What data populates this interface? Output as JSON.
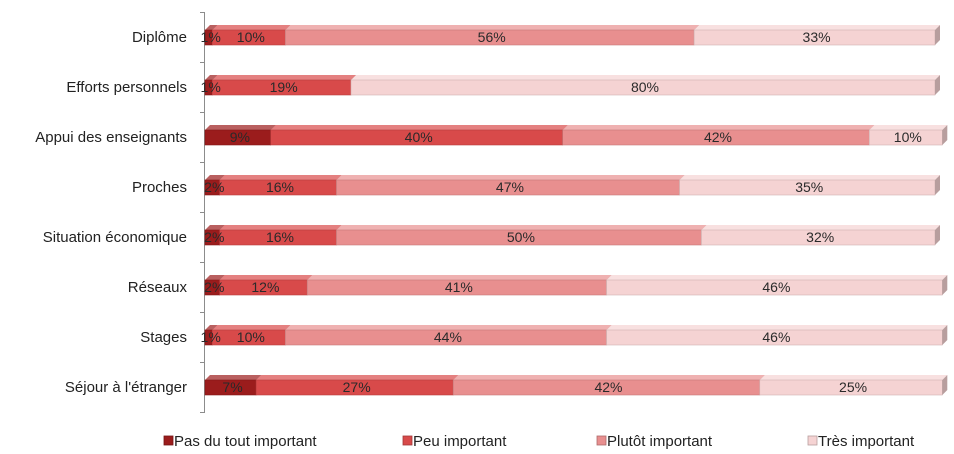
{
  "chart_data": {
    "type": "bar",
    "orientation": "horizontal",
    "stacked": true,
    "percent_stacked": true,
    "categories": [
      "Diplôme",
      "Efforts personnels",
      "Appui des enseignants",
      "Proches",
      "Situation économique",
      "Réseaux",
      "Stages",
      "Séjour à l'étranger"
    ],
    "series": [
      {
        "name": "Pas du tout important",
        "values": [
          1,
          1,
          9,
          2,
          2,
          2,
          1,
          7
        ],
        "labels": [
          "1%",
          "1%",
          "9%",
          "2%",
          "2%",
          "2%",
          "1%",
          "7%"
        ],
        "color": "#9b1c1c"
      },
      {
        "name": "Peu important",
        "values": [
          10,
          19,
          40,
          16,
          16,
          12,
          10,
          27
        ],
        "labels": [
          "10%",
          "19%",
          "40%",
          "16%",
          "16%",
          "12%",
          "10%",
          "27%"
        ],
        "color": "#d84a4a"
      },
      {
        "name": "Plutôt important",
        "values": [
          56,
          0,
          42,
          47,
          50,
          41,
          44,
          42
        ],
        "labels": [
          "56%",
          "",
          "42%",
          "47%",
          "50%",
          "41%",
          "44%",
          "42%"
        ],
        "color": "#e88f8f"
      },
      {
        "name": "Très important",
        "values": [
          33,
          80,
          10,
          35,
          32,
          46,
          46,
          25
        ],
        "labels": [
          "33%",
          "80%",
          "10%",
          "35%",
          "32%",
          "46%",
          "46%",
          "25%"
        ],
        "color": "#f5d3d3"
      }
    ],
    "xlim": [
      0,
      100
    ],
    "grid": false,
    "legend_position": "bottom"
  }
}
